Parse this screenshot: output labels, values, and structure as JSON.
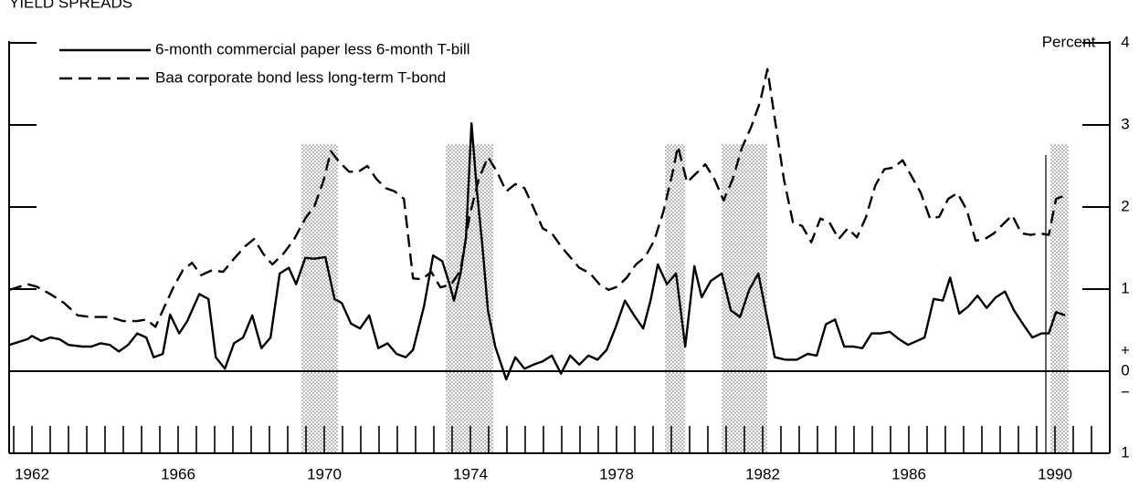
{
  "chart_data": {
    "type": "line",
    "title": "YIELD SPREADS",
    "y_label": "Percent",
    "xlim": [
      1961.375,
      1991.5
    ],
    "ylim": [
      -1,
      4
    ],
    "xticks": [
      1962,
      1966,
      1970,
      1974,
      1978,
      1982,
      1986,
      1990
    ],
    "xminorticks": [
      1961.5,
      1962,
      1962.5,
      1963,
      1963.5,
      1964,
      1964.5,
      1965,
      1965.5,
      1966,
      1966.5,
      1967,
      1967.5,
      1968,
      1968.5,
      1969,
      1969.5,
      1970,
      1970.5,
      1971,
      1971.5,
      1972,
      1972.5,
      1973,
      1973.5,
      1974,
      1974.5,
      1975,
      1975.5,
      1976,
      1976.5,
      1977,
      1977.5,
      1978,
      1978.5,
      1979,
      1979.5,
      1980,
      1980.5,
      1981,
      1981.5,
      1982,
      1982.5,
      1983,
      1983.5,
      1984,
      1984.5,
      1985,
      1985.5,
      1986,
      1986.5,
      1987,
      1987.5,
      1988,
      1988.5,
      1989,
      1989.5,
      1990,
      1990.5,
      1991
    ],
    "yticks": [
      4,
      3,
      2,
      1,
      0,
      {
        "value": -1,
        "label": "1"
      }
    ],
    "annotations": [
      "+",
      "−"
    ],
    "shaded_periods": [
      [
        1969.38,
        1970.38
      ],
      [
        1973.33,
        1974.63
      ],
      [
        1979.33,
        1979.88
      ],
      [
        1980.88,
        1982.13
      ],
      [
        1989.88,
        1990.38
      ]
    ],
    "marker_line_x": 1989.75,
    "series": [
      {
        "name": "6-month commercial paper less 6-month T-bill",
        "color": "#000000",
        "style": "solid",
        "x": [
          1961.38,
          1961.88,
          1962.0,
          1962.25,
          1962.5,
          1962.75,
          1963.0,
          1963.38,
          1963.63,
          1963.88,
          1964.13,
          1964.38,
          1964.63,
          1964.88,
          1965.13,
          1965.33,
          1965.58,
          1965.78,
          1966.03,
          1966.25,
          1966.58,
          1966.83,
          1967.03,
          1967.28,
          1967.53,
          1967.78,
          1968.03,
          1968.28,
          1968.53,
          1968.78,
          1969.03,
          1969.23,
          1969.48,
          1969.73,
          1970.03,
          1970.28,
          1970.48,
          1970.73,
          1970.98,
          1971.23,
          1971.48,
          1971.73,
          1971.98,
          1972.23,
          1972.43,
          1972.73,
          1972.98,
          1973.23,
          1973.43,
          1973.55,
          1973.73,
          1973.88,
          1974.03,
          1974.18,
          1974.33,
          1974.48,
          1974.68,
          1974.98,
          1975.23,
          1975.48,
          1975.73,
          1975.98,
          1976.23,
          1976.48,
          1976.73,
          1976.98,
          1977.23,
          1977.48,
          1977.73,
          1977.98,
          1978.23,
          1978.48,
          1978.73,
          1978.93,
          1979.13,
          1979.38,
          1979.63,
          1979.88,
          1980.13,
          1980.33,
          1980.58,
          1980.88,
          1981.13,
          1981.38,
          1981.63,
          1981.88,
          1982.13,
          1982.33,
          1982.63,
          1982.93,
          1983.23,
          1983.48,
          1983.73,
          1983.98,
          1984.23,
          1984.48,
          1984.73,
          1984.98,
          1985.23,
          1985.48,
          1985.73,
          1985.98,
          1986.23,
          1986.43,
          1986.68,
          1986.93,
          1987.13,
          1987.38,
          1987.63,
          1987.88,
          1988.13,
          1988.38,
          1988.63,
          1988.88,
          1989.13,
          1989.38,
          1989.63,
          1989.83,
          1990.03,
          1990.28
        ],
        "values": [
          0.32,
          0.39,
          0.43,
          0.37,
          0.41,
          0.39,
          0.32,
          0.3,
          0.3,
          0.34,
          0.32,
          0.24,
          0.32,
          0.46,
          0.41,
          0.17,
          0.21,
          0.69,
          0.46,
          0.61,
          0.94,
          0.88,
          0.17,
          0.03,
          0.34,
          0.41,
          0.68,
          0.28,
          0.41,
          1.19,
          1.26,
          1.06,
          1.38,
          1.37,
          1.39,
          0.88,
          0.83,
          0.58,
          0.52,
          0.68,
          0.28,
          0.34,
          0.21,
          0.17,
          0.26,
          0.79,
          1.41,
          1.34,
          1.06,
          0.86,
          1.19,
          1.63,
          3.02,
          2.19,
          1.52,
          0.74,
          0.3,
          -0.1,
          0.17,
          0.03,
          0.08,
          0.12,
          0.19,
          -0.03,
          0.19,
          0.08,
          0.19,
          0.14,
          0.26,
          0.54,
          0.86,
          0.68,
          0.52,
          0.86,
          1.3,
          1.06,
          1.19,
          0.3,
          1.28,
          0.9,
          1.1,
          1.19,
          0.74,
          0.66,
          0.99,
          1.19,
          0.63,
          0.17,
          0.14,
          0.14,
          0.21,
          0.19,
          0.57,
          0.63,
          0.3,
          0.3,
          0.28,
          0.46,
          0.46,
          0.48,
          0.39,
          0.32,
          0.37,
          0.41,
          0.88,
          0.86,
          1.14,
          0.7,
          0.79,
          0.92,
          0.77,
          0.9,
          0.97,
          0.74,
          0.57,
          0.41,
          0.46,
          0.46,
          0.72,
          0.68
        ]
      },
      {
        "name": "Baa corporate bond less long-term T-bond",
        "color": "#000000",
        "style": "dashed",
        "x": [
          1961.38,
          1961.88,
          1962.13,
          1962.5,
          1962.88,
          1963.25,
          1963.63,
          1964.13,
          1964.5,
          1964.88,
          1965.13,
          1965.38,
          1965.63,
          1965.88,
          1966.13,
          1966.38,
          1966.63,
          1966.93,
          1967.23,
          1967.53,
          1967.83,
          1968.08,
          1968.33,
          1968.58,
          1968.88,
          1969.18,
          1969.48,
          1969.73,
          1969.98,
          1970.18,
          1970.43,
          1970.68,
          1970.93,
          1971.18,
          1971.43,
          1971.68,
          1971.93,
          1972.18,
          1972.43,
          1972.68,
          1972.93,
          1973.18,
          1973.48,
          1973.73,
          1973.98,
          1974.23,
          1974.48,
          1974.73,
          1974.98,
          1975.23,
          1975.48,
          1975.73,
          1975.98,
          1976.23,
          1976.48,
          1976.73,
          1976.98,
          1977.28,
          1977.53,
          1977.78,
          1978.03,
          1978.28,
          1978.53,
          1978.78,
          1979.03,
          1979.28,
          1979.53,
          1979.68,
          1979.93,
          1980.18,
          1980.43,
          1980.68,
          1980.93,
          1981.18,
          1981.43,
          1981.68,
          1981.93,
          1982.13,
          1982.33,
          1982.58,
          1982.83,
          1983.08,
          1983.33,
          1983.58,
          1983.83,
          1984.08,
          1984.33,
          1984.58,
          1984.83,
          1985.08,
          1985.33,
          1985.58,
          1985.83,
          1986.08,
          1986.33,
          1986.58,
          1986.83,
          1987.08,
          1987.33,
          1987.58,
          1987.83,
          1988.08,
          1988.33,
          1988.58,
          1988.83,
          1989.08,
          1989.33,
          1989.58,
          1989.83,
          1990.03,
          1990.28
        ],
        "values": [
          0.99,
          1.06,
          1.03,
          0.94,
          0.83,
          0.68,
          0.66,
          0.66,
          0.61,
          0.61,
          0.63,
          0.54,
          0.79,
          1.03,
          1.23,
          1.32,
          1.17,
          1.23,
          1.21,
          1.37,
          1.52,
          1.61,
          1.43,
          1.3,
          1.43,
          1.61,
          1.86,
          2.01,
          2.32,
          2.68,
          2.54,
          2.43,
          2.43,
          2.5,
          2.34,
          2.23,
          2.19,
          2.1,
          1.13,
          1.12,
          1.21,
          1.02,
          1.06,
          1.23,
          1.9,
          2.34,
          2.61,
          2.43,
          2.19,
          2.28,
          2.23,
          1.99,
          1.74,
          1.68,
          1.52,
          1.39,
          1.26,
          1.19,
          1.06,
          0.99,
          1.03,
          1.14,
          1.3,
          1.39,
          1.59,
          1.94,
          2.41,
          2.74,
          2.3,
          2.41,
          2.52,
          2.34,
          2.08,
          2.34,
          2.72,
          2.97,
          3.28,
          3.68,
          3.08,
          2.34,
          1.81,
          1.77,
          1.57,
          1.86,
          1.81,
          1.61,
          1.74,
          1.63,
          1.88,
          2.26,
          2.46,
          2.48,
          2.57,
          2.37,
          2.17,
          1.86,
          1.88,
          2.1,
          2.17,
          1.97,
          1.59,
          1.61,
          1.68,
          1.79,
          1.9,
          1.68,
          1.66,
          1.68,
          1.66,
          2.1,
          2.14
        ]
      }
    ]
  }
}
